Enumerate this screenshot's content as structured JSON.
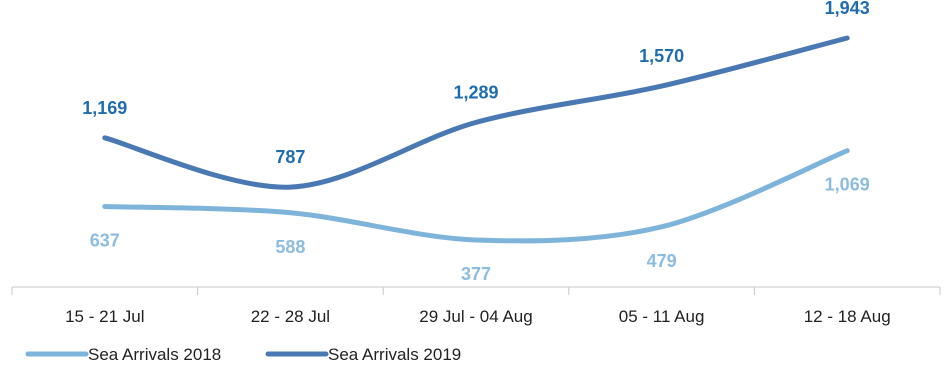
{
  "chart_data": {
    "type": "line",
    "categories": [
      "15 - 21 Jul",
      "22 - 28 Jul",
      "29 Jul - 04 Aug",
      "05 - 11 Aug",
      "12 - 18 Aug"
    ],
    "series": [
      {
        "name": "Sea Arrivals 2018",
        "values": [
          637,
          588,
          377,
          479,
          1069
        ],
        "value_labels": [
          "637",
          "588",
          "377",
          "479",
          "1,069"
        ],
        "color": "#7FB4DA",
        "label_color": "#8CBCDF",
        "label_position": "below"
      },
      {
        "name": "Sea Arrivals 2019",
        "values": [
          1169,
          787,
          1289,
          1570,
          1943
        ],
        "value_labels": [
          "1,169",
          "787",
          "1,289",
          "1,570",
          "1,943"
        ],
        "color": "#4A78B3",
        "label_color": "#1F6DB0",
        "label_position": "above"
      }
    ],
    "title": "",
    "xlabel": "",
    "ylabel": "",
    "ylim": [
      200,
      2100
    ],
    "grid": false,
    "legend": "bottom-left",
    "axis_color": "#C8C8C8"
  }
}
